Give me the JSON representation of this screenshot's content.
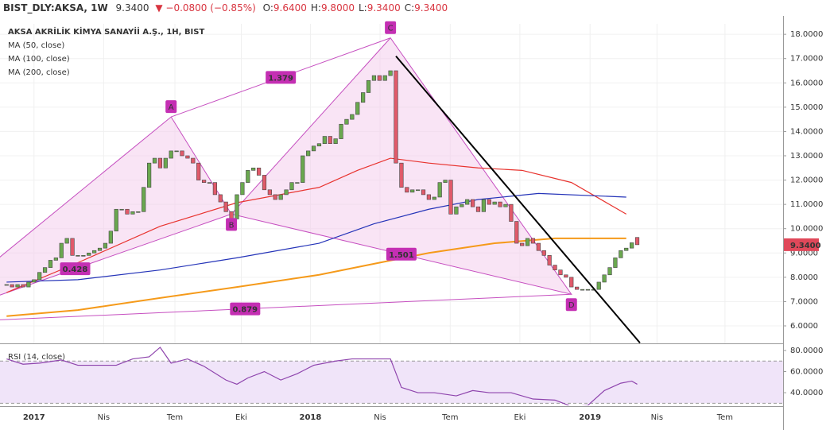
{
  "header": {
    "symbol": "BIST_DLY:AKSA, 1W",
    "last": "9.3400",
    "change": "▼ −0.0800 (−0.85%)",
    "ohlc": [
      {
        "key": "O:",
        "value": "9.6400"
      },
      {
        "key": "H:",
        "value": "9.8000"
      },
      {
        "key": "L:",
        "value": "9.3400"
      },
      {
        "key": "C:",
        "value": "9.3400"
      }
    ]
  },
  "chart_data": [
    {
      "type": "candlestick",
      "title": "AKSA AKRİLİK KİMYA SANAYİİ A.Ş., 1H, BIST",
      "up_color": "#6aa84f",
      "down_color": "#e05a6a",
      "open": [
        7.7,
        7.7,
        7.6,
        7.7,
        7.6,
        7.8,
        7.9,
        8.2,
        8.4,
        8.7,
        8.8,
        9.4,
        9.6,
        8.9,
        8.9,
        8.9,
        9.0,
        9.1,
        9.2,
        9.4,
        9.9,
        10.8,
        10.8,
        10.6,
        10.7,
        10.7,
        11.7,
        12.7,
        12.9,
        12.5,
        12.9,
        13.2,
        13.2,
        13.0,
        12.9,
        12.7,
        12.0,
        11.9,
        11.9,
        11.4,
        11.1,
        10.7,
        10.4,
        11.4,
        11.9,
        12.4,
        12.5,
        12.2,
        11.6,
        11.4,
        11.2,
        11.4,
        11.6,
        11.9,
        11.9,
        13.0,
        13.2,
        13.4,
        13.5,
        13.8,
        13.5,
        13.7,
        14.3,
        14.5,
        14.7,
        15.2,
        15.6,
        16.1,
        16.3,
        16.1,
        16.3,
        16.5,
        12.7,
        11.7,
        11.5,
        11.6,
        11.6,
        11.4,
        11.2,
        11.3,
        11.9,
        12.0,
        10.6,
        10.9,
        11.0,
        11.2,
        10.9,
        10.7,
        11.2,
        11.0,
        11.1,
        10.9,
        11.0,
        10.3,
        9.4,
        9.3,
        9.6,
        9.4,
        9.1,
        8.9,
        8.5,
        8.3,
        8.1,
        8.0,
        7.6,
        7.5,
        7.5,
        7.5,
        7.5,
        7.8,
        8.1,
        8.4,
        8.8,
        9.1,
        9.2,
        9.64
      ],
      "close": [
        7.7,
        7.6,
        7.7,
        7.6,
        7.8,
        7.9,
        8.2,
        8.4,
        8.7,
        8.8,
        9.4,
        9.6,
        8.9,
        8.9,
        8.9,
        9.0,
        9.1,
        9.2,
        9.4,
        9.9,
        10.8,
        10.8,
        10.6,
        10.7,
        10.7,
        11.7,
        12.7,
        12.9,
        12.5,
        12.9,
        13.2,
        13.2,
        13.0,
        12.9,
        12.7,
        12.0,
        11.9,
        11.9,
        11.4,
        11.1,
        10.7,
        10.4,
        11.4,
        11.9,
        12.4,
        12.5,
        12.2,
        11.6,
        11.4,
        11.2,
        11.4,
        11.6,
        11.9,
        11.9,
        13.0,
        13.2,
        13.4,
        13.5,
        13.8,
        13.5,
        13.7,
        14.3,
        14.5,
        14.7,
        15.2,
        15.6,
        16.1,
        16.3,
        16.1,
        16.3,
        16.5,
        12.7,
        11.7,
        11.5,
        11.6,
        11.6,
        11.4,
        11.2,
        11.3,
        11.9,
        12.0,
        10.6,
        10.9,
        11.0,
        11.2,
        10.9,
        10.7,
        11.2,
        11.0,
        11.1,
        10.9,
        11.0,
        10.3,
        9.4,
        9.3,
        9.6,
        9.4,
        9.1,
        8.9,
        8.5,
        8.3,
        8.1,
        8.0,
        7.6,
        7.5,
        7.5,
        7.5,
        7.5,
        7.8,
        8.1,
        8.4,
        8.8,
        9.1,
        9.2,
        9.42,
        9.34
      ],
      "last_label": "9.3400",
      "series": [
        {
          "name": "MA (50, close)",
          "color": "#e8332e",
          "x": [
            0,
            13,
            28,
            42,
            57,
            64,
            70,
            77,
            86,
            94,
            103,
            113
          ],
          "values": [
            7.37,
            8.6,
            10.1,
            11.07,
            11.7,
            12.4,
            12.9,
            12.7,
            12.5,
            12.4,
            11.9,
            10.6
          ]
        },
        {
          "name": "MA (100, close)",
          "color": "#2433b8",
          "x": [
            0,
            13,
            28,
            42,
            57,
            67,
            77,
            86,
            97,
            113
          ],
          "values": [
            7.8,
            7.9,
            8.3,
            8.8,
            9.4,
            10.2,
            10.8,
            11.2,
            11.45,
            11.3
          ]
        },
        {
          "name": "MA (200, close)",
          "color": "#f59a1a",
          "x": [
            0,
            13,
            28,
            42,
            57,
            68,
            77,
            89,
            100,
            113
          ],
          "values": [
            6.4,
            6.65,
            7.15,
            7.6,
            8.1,
            8.6,
            9.0,
            9.4,
            9.6,
            9.6
          ]
        }
      ],
      "pattern": {
        "points": [
          {
            "x": -16,
            "y": 6.1
          },
          {
            "x": 30,
            "y": 14.6,
            "label": "A"
          },
          {
            "x": 41,
            "y": 10.6,
            "label": "B"
          },
          {
            "x": 70,
            "y": 17.85,
            "label": "C"
          },
          {
            "x": 103,
            "y": 7.3,
            "label": "D"
          }
        ],
        "ratios": {
          "XB": "0.428",
          "AC": "1.379",
          "BD": "1.501",
          "XD": "0.879"
        }
      },
      "trendline": [
        {
          "x": 71,
          "y": 17.1
        },
        {
          "x": 115.5,
          "y": 5.3
        }
      ],
      "xlim": [
        -1.2,
        141.6
      ],
      "ylim": [
        5.28,
        18.43
      ],
      "yticks": [
        {
          "value": 6,
          "label": "6.0000"
        },
        {
          "value": 7,
          "label": "7.0000"
        },
        {
          "value": 8,
          "label": "8.0000"
        },
        {
          "value": 9,
          "label": "9.0000"
        },
        {
          "value": 10,
          "label": "10.0000"
        },
        {
          "value": 11,
          "label": "11.0000"
        },
        {
          "value": 12,
          "label": "12.0000"
        },
        {
          "value": 13,
          "label": "13.0000"
        },
        {
          "value": 14,
          "label": "14.0000"
        },
        {
          "value": 15,
          "label": "15.0000"
        },
        {
          "value": 16,
          "label": "16.0000"
        },
        {
          "value": 17,
          "label": "17.0000"
        },
        {
          "value": 18,
          "label": "18.0000"
        }
      ],
      "xticks": [
        {
          "value": 5,
          "label": "2017"
        },
        {
          "value": 17.7,
          "label": "Nis"
        },
        {
          "value": 30.7,
          "label": "Tem"
        },
        {
          "value": 42.8,
          "label": "Eki"
        },
        {
          "value": 55.4,
          "label": "2018"
        },
        {
          "value": 68.1,
          "label": "Nis"
        },
        {
          "value": 80.9,
          "label": "Tem"
        },
        {
          "value": 93.6,
          "label": "Eki"
        },
        {
          "value": 106.4,
          "label": "2019"
        },
        {
          "value": 118.6,
          "label": "Nis"
        },
        {
          "value": 131,
          "label": "Tem"
        }
      ]
    },
    {
      "type": "line",
      "title": "RSI (14, close)",
      "color": "#8e44ad",
      "band_color": "#e9d8f7",
      "x": [
        0,
        3,
        6,
        10,
        13,
        16,
        20,
        23,
        26,
        28,
        30,
        33,
        36,
        40,
        42,
        44,
        47,
        50,
        53,
        56,
        60,
        63,
        66,
        70,
        72,
        75,
        78,
        82,
        85,
        88,
        92,
        96,
        100,
        103,
        106,
        109,
        112,
        114,
        115
      ],
      "values": [
        72,
        67,
        68,
        71,
        66,
        66,
        66,
        72,
        74,
        83,
        68,
        72,
        65,
        52,
        48,
        54,
        60,
        52,
        58,
        66,
        70,
        72,
        72,
        72,
        45,
        40,
        40,
        37,
        42,
        40,
        40,
        34,
        33,
        27,
        28,
        42,
        49,
        51,
        48
      ],
      "bands": [
        30,
        70
      ],
      "ylim": [
        28,
        86
      ],
      "yticks": [
        {
          "value": 40,
          "label": "40.0000"
        },
        {
          "value": 60,
          "label": "60.0000"
        },
        {
          "value": 80,
          "label": "80.0000"
        }
      ]
    }
  ]
}
